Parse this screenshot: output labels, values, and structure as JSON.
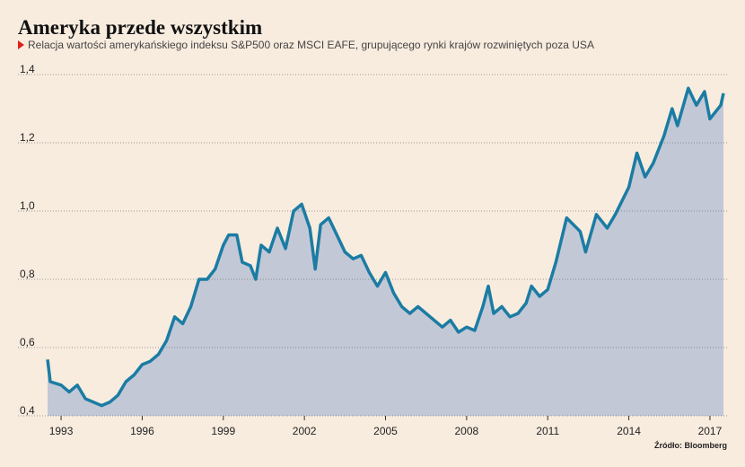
{
  "chart_data": {
    "type": "area",
    "title": "Ameryka przede wszystkim",
    "subtitle": "Relacja wartości amerykańskiego indeksu S&P500 oraz MSCI EAFE, grupującego rynki krajów rozwiniętych poza USA",
    "source": "Źródło: Bloomberg",
    "line_color": "#1b7ca3",
    "fill_color": "#c3c8d7",
    "grid": true,
    "xlim": [
      1992.5,
      2017.5
    ],
    "xticks": [
      1993,
      1996,
      1999,
      2002,
      2005,
      2008,
      2011,
      2014,
      2017
    ],
    "ylim": [
      0.4,
      1.4
    ],
    "yticks": [
      {
        "value": 0.4,
        "label": "0,4"
      },
      {
        "value": 0.6,
        "label": "0,6"
      },
      {
        "value": 0.8,
        "label": "0,8"
      },
      {
        "value": 1.0,
        "label": "1,0"
      },
      {
        "value": 1.2,
        "label": "1,2"
      },
      {
        "value": 1.4,
        "label": "1,4"
      }
    ],
    "x": [
      1992.5,
      1992.6,
      1993.0,
      1993.3,
      1993.6,
      1993.9,
      1994.2,
      1994.5,
      1994.8,
      1995.1,
      1995.4,
      1995.7,
      1996.0,
      1996.3,
      1996.6,
      1996.9,
      1997.2,
      1997.5,
      1997.8,
      1998.1,
      1998.4,
      1998.7,
      1999.0,
      1999.2,
      1999.5,
      1999.7,
      2000.0,
      2000.2,
      2000.4,
      2000.7,
      2001.0,
      2001.3,
      2001.6,
      2001.9,
      2002.2,
      2002.4,
      2002.6,
      2002.9,
      2003.2,
      2003.5,
      2003.8,
      2004.1,
      2004.4,
      2004.7,
      2005.0,
      2005.3,
      2005.6,
      2005.9,
      2006.2,
      2006.5,
      2006.8,
      2007.1,
      2007.4,
      2007.7,
      2008.0,
      2008.3,
      2008.6,
      2008.8,
      2009.0,
      2009.3,
      2009.6,
      2009.9,
      2010.2,
      2010.4,
      2010.7,
      2011.0,
      2011.3,
      2011.7,
      2012.2,
      2012.4,
      2012.8,
      2013.2,
      2013.5,
      2014.0,
      2014.3,
      2014.6,
      2014.9,
      2015.3,
      2015.6,
      2015.8,
      2016.2,
      2016.5,
      2016.8,
      2017.0,
      2017.4,
      2017.5
    ],
    "values": [
      0.565,
      0.5,
      0.49,
      0.47,
      0.49,
      0.45,
      0.44,
      0.43,
      0.44,
      0.46,
      0.5,
      0.52,
      0.55,
      0.56,
      0.58,
      0.62,
      0.69,
      0.67,
      0.72,
      0.8,
      0.8,
      0.83,
      0.9,
      0.93,
      0.93,
      0.85,
      0.84,
      0.8,
      0.9,
      0.88,
      0.95,
      0.89,
      1.0,
      1.02,
      0.95,
      0.83,
      0.96,
      0.98,
      0.93,
      0.88,
      0.86,
      0.87,
      0.82,
      0.78,
      0.82,
      0.76,
      0.72,
      0.7,
      0.72,
      0.7,
      0.68,
      0.66,
      0.68,
      0.645,
      0.66,
      0.65,
      0.72,
      0.78,
      0.7,
      0.72,
      0.69,
      0.7,
      0.73,
      0.78,
      0.75,
      0.77,
      0.85,
      0.98,
      0.94,
      0.88,
      0.99,
      0.95,
      0.99,
      1.07,
      1.17,
      1.1,
      1.14,
      1.22,
      1.3,
      1.25,
      1.36,
      1.31,
      1.35,
      1.27,
      1.31,
      1.345
    ]
  }
}
